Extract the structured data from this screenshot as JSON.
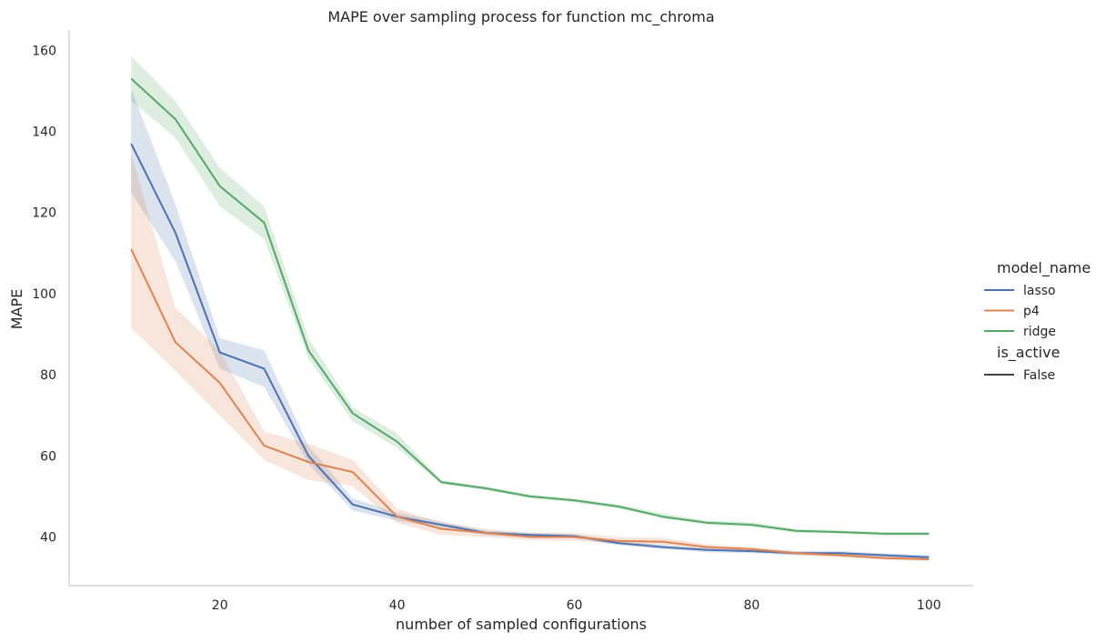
{
  "chart_data": {
    "type": "line",
    "title": "MAPE over sampling process for function mc_chroma",
    "xlabel": "number of sampled configurations",
    "ylabel": "MAPE",
    "xlim": [
      3,
      105
    ],
    "ylim": [
      28,
      165
    ],
    "xticks": [
      20,
      40,
      60,
      80,
      100
    ],
    "yticks": [
      40,
      60,
      80,
      100,
      120,
      140,
      160
    ],
    "grid": false,
    "legend": {
      "placement": "right",
      "hue_title": "model_name",
      "style_title": "is_active",
      "style_entries": [
        "False"
      ]
    },
    "x": [
      10,
      15,
      20,
      25,
      30,
      35,
      40,
      45,
      50,
      55,
      60,
      65,
      70,
      75,
      80,
      85,
      90,
      95,
      100
    ],
    "series": [
      {
        "name": "lasso",
        "color": "#4c72b0",
        "values": [
          137.0,
          115.0,
          85.5,
          81.5,
          60.0,
          48.0,
          45.0,
          43.0,
          41.0,
          40.5,
          40.2,
          38.5,
          37.5,
          36.8,
          36.5,
          36.0,
          36.0,
          35.5,
          35.0
        ],
        "lower": [
          125.0,
          108.0,
          81.5,
          77.0,
          58.0,
          46.5,
          44.0,
          42.3,
          40.4,
          40.0,
          39.7,
          38.0,
          37.0,
          36.2,
          36.0,
          35.5,
          35.5,
          35.0,
          34.5
        ],
        "upper": [
          150.5,
          122.0,
          89.0,
          86.0,
          62.5,
          49.5,
          46.0,
          43.8,
          41.6,
          41.0,
          40.7,
          39.0,
          38.0,
          37.3,
          37.0,
          36.5,
          36.5,
          36.0,
          35.5
        ]
      },
      {
        "name": "p4",
        "color": "#dd8452",
        "values": [
          111.0,
          88.0,
          78.0,
          62.5,
          58.5,
          56.0,
          45.0,
          42.0,
          41.0,
          40.0,
          40.0,
          39.0,
          38.8,
          37.5,
          37.0,
          36.0,
          35.5,
          34.8,
          34.5
        ],
        "lower": [
          91.5,
          81.0,
          70.0,
          59.0,
          54.0,
          52.5,
          43.5,
          40.5,
          40.0,
          39.2,
          39.0,
          38.2,
          38.0,
          37.0,
          36.5,
          35.5,
          35.0,
          34.3,
          34.0
        ],
        "upper": [
          134.5,
          96.5,
          86.0,
          66.0,
          63.0,
          59.0,
          47.0,
          43.5,
          42.0,
          41.0,
          41.0,
          40.0,
          39.8,
          38.2,
          37.5,
          36.5,
          36.0,
          35.3,
          35.0
        ]
      },
      {
        "name": "ridge",
        "color": "#55a868",
        "values": [
          153.0,
          143.0,
          126.5,
          117.5,
          86.0,
          70.5,
          63.5,
          53.5,
          52.0,
          50.0,
          49.0,
          47.5,
          45.0,
          43.5,
          43.0,
          41.5,
          41.2,
          40.8,
          40.8
        ],
        "lower": [
          147.5,
          138.5,
          121.5,
          113.5,
          84.0,
          68.5,
          62.0,
          53.0,
          51.5,
          49.5,
          48.5,
          47.0,
          44.5,
          43.0,
          42.5,
          41.0,
          40.8,
          40.3,
          40.3
        ],
        "upper": [
          158.5,
          147.5,
          131.0,
          121.5,
          89.0,
          72.0,
          65.5,
          54.0,
          52.5,
          50.5,
          49.5,
          48.0,
          45.8,
          44.0,
          43.7,
          42.0,
          41.6,
          41.2,
          41.2
        ]
      }
    ]
  }
}
